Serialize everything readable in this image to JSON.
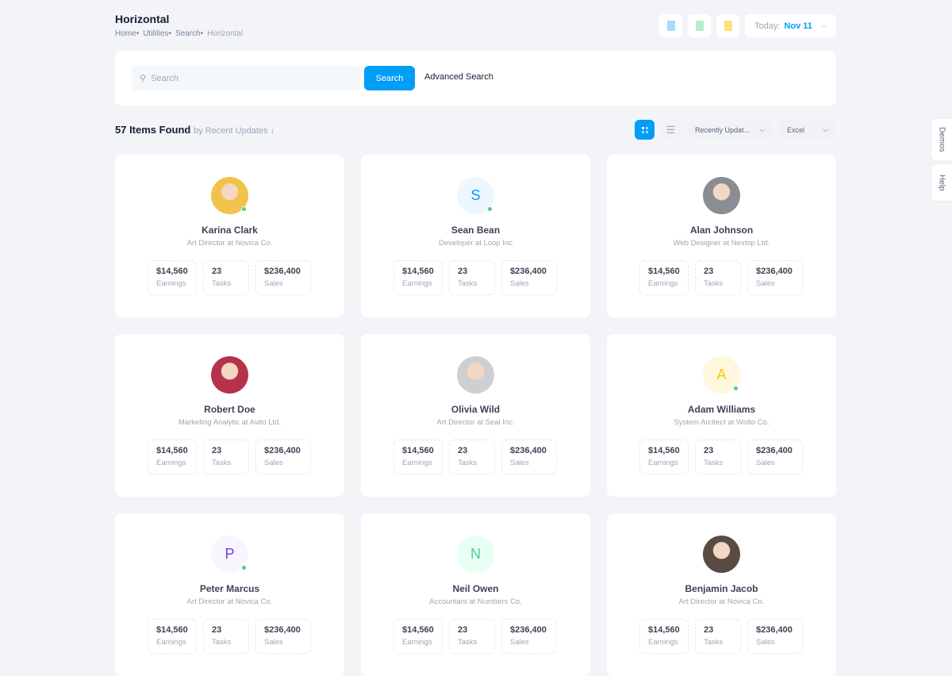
{
  "header": {
    "title": "Horizontal",
    "breadcrumbs": [
      "Home",
      "Utilities",
      "Search",
      "Horizontal"
    ],
    "toolbar_icons": [
      "file-check-icon",
      "file-add-icon",
      "file-text-icon"
    ],
    "date_label": "Today:",
    "date_value": "Nov 11"
  },
  "search": {
    "placeholder": "Search",
    "button": "Search",
    "advanced": "Advanced Search"
  },
  "results": {
    "count_label": "57 Items Found",
    "sort_label": "by Recent Updates ↓",
    "sort_select": "Recently Updat...",
    "export_select": "Excel"
  },
  "side_tabs": [
    "Demos",
    "Help"
  ],
  "colors": {
    "accent": "#009ef7",
    "online": "#50cd89"
  },
  "cards": [
    {
      "name": "Karina Clark",
      "role": "Art Director at Novica Co.",
      "avatar": "photo",
      "online": true,
      "bg": "#f1c34a",
      "earnings": "$14,560",
      "tasks": "23",
      "sales": "$236,400"
    },
    {
      "name": "Sean Bean",
      "role": "Developer at Loop Inc",
      "avatar": "S",
      "online": true,
      "bg": "#eef7ff",
      "fg": "#009ef7",
      "earnings": "$14,560",
      "tasks": "23",
      "sales": "$236,400"
    },
    {
      "name": "Alan Johnson",
      "role": "Web Designer at Nextop Ltd.",
      "avatar": "photo",
      "online": false,
      "bg": "#8a8d93",
      "earnings": "$14,560",
      "tasks": "23",
      "sales": "$236,400"
    },
    {
      "name": "Robert Doe",
      "role": "Marketing Analytic at Avito Ltd.",
      "avatar": "photo",
      "online": false,
      "bg": "#b5324a",
      "earnings": "$14,560",
      "tasks": "23",
      "sales": "$236,400"
    },
    {
      "name": "Olivia Wild",
      "role": "Art Director at Seal Inc.",
      "avatar": "photo",
      "online": false,
      "bg": "#cfcfd2",
      "earnings": "$14,560",
      "tasks": "23",
      "sales": "$236,400"
    },
    {
      "name": "Adam Williams",
      "role": "System Arcitect at Wolto Co.",
      "avatar": "A",
      "online": true,
      "bg": "#fff8dd",
      "fg": "#ffc700",
      "earnings": "$14,560",
      "tasks": "23",
      "sales": "$236,400"
    },
    {
      "name": "Peter Marcus",
      "role": "Art Director at Novica Co.",
      "avatar": "P",
      "online": true,
      "bg": "#f8f5ff",
      "fg": "#7239ea",
      "earnings": "$14,560",
      "tasks": "23",
      "sales": "$236,400"
    },
    {
      "name": "Neil Owen",
      "role": "Accountant at Numbers Co.",
      "avatar": "N",
      "online": false,
      "bg": "#e8fff3",
      "fg": "#50cd89",
      "earnings": "$14,560",
      "tasks": "23",
      "sales": "$236,400"
    },
    {
      "name": "Benjamin Jacob",
      "role": "Art Director at Novica Co.",
      "avatar": "photo",
      "online": false,
      "bg": "#5a4a44",
      "earnings": "$14,560",
      "tasks": "23",
      "sales": "$236,400"
    }
  ],
  "stat_labels": {
    "earnings": "Earnings",
    "tasks": "Tasks",
    "sales": "Sales"
  }
}
